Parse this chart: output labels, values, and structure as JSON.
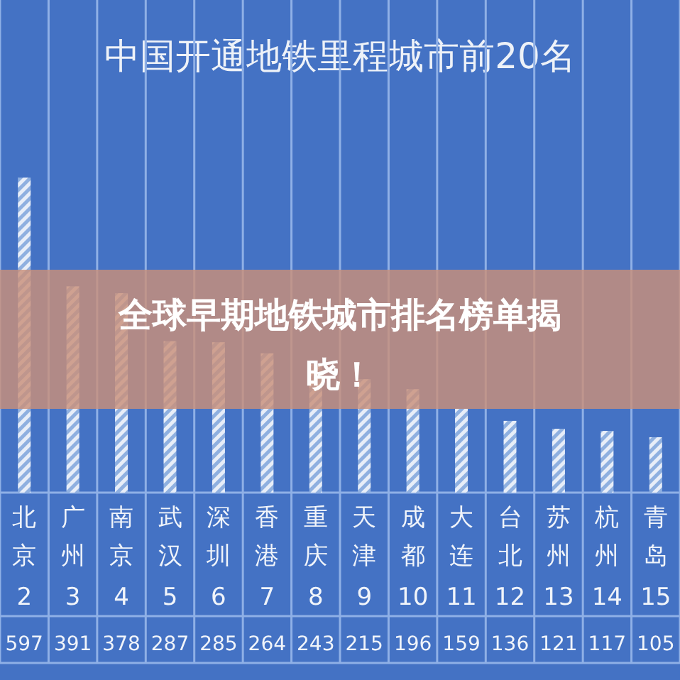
{
  "chart_data": {
    "type": "bar",
    "title": "中国开通地铁里程城市前20名",
    "categories": [
      "北京",
      "广州",
      "南京",
      "武汉",
      "深圳",
      "香港",
      "重庆",
      "天津",
      "成都",
      "大连",
      "台北",
      "苏州",
      "杭州",
      "青岛"
    ],
    "values": [
      597,
      391,
      378,
      287,
      285,
      264,
      243,
      215,
      196,
      159,
      136,
      121,
      117,
      105
    ],
    "color": "#e8eef8",
    "data_labels": true,
    "annotations": [
      "全球早期地铁城市排名榜单揭晓！",
      "2",
      "3",
      "4",
      "5",
      "6",
      "7",
      "8",
      "9",
      "10",
      "11",
      "12",
      "13",
      "14",
      "15"
    ]
  }
}
